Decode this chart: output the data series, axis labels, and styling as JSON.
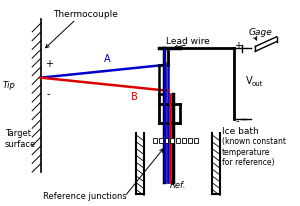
{
  "bg_color": "#ffffff",
  "colors": {
    "blue": "#0000cc",
    "red": "#dd0000",
    "black": "#000000"
  },
  "labels": {
    "thermocouple": "Thermocouple",
    "tip": "Tip",
    "A": "A",
    "B": "B",
    "plus_left": "+",
    "minus_left": "-",
    "lead_wire": "Lead wire",
    "gage": "Gage",
    "vout_v": "V",
    "vout_sub": "out",
    "plus_right": "+",
    "minus_right": "-",
    "ice_bath": "Ice bath",
    "ice_bath_sub": "(known constant\ntemperature\nfor reference)",
    "ref": "Ref.",
    "ref_junctions": "Reference junctions",
    "target_surface": "Target\nsurface"
  }
}
